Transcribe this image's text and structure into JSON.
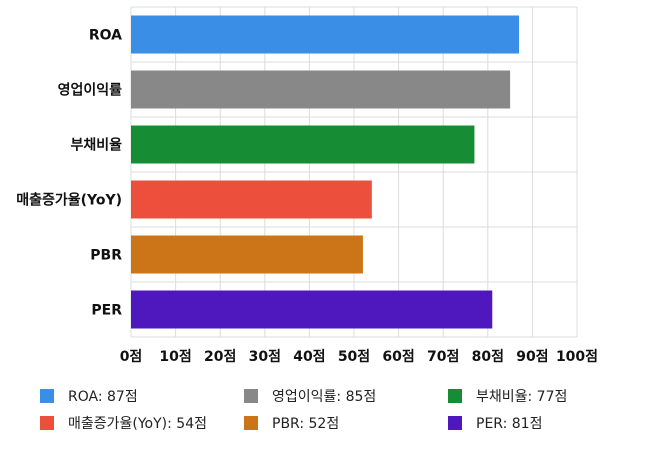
{
  "chart_data": {
    "type": "bar",
    "orientation": "horizontal",
    "categories": [
      "ROA",
      "영업이익률",
      "부채비율",
      "매출증가율(YoY)",
      "PBR",
      "PER"
    ],
    "values": [
      87,
      85,
      77,
      54,
      52,
      81
    ],
    "colors": [
      "#3a8ee6",
      "#888888",
      "#168c35",
      "#ec4f3c",
      "#cc7518",
      "#4e18be"
    ],
    "xlim": [
      0,
      100
    ],
    "xticks": [
      0,
      10,
      20,
      30,
      40,
      50,
      60,
      70,
      80,
      90,
      100
    ],
    "tick_suffix": "점",
    "grid": true,
    "legend_position": "bottom",
    "legend": [
      {
        "label": "ROA: 87점"
      },
      {
        "label": "영업이익률: 85점"
      },
      {
        "label": "부채비율: 77점"
      },
      {
        "label": "매출증가율(YoY): 54점"
      },
      {
        "label": "PBR: 52점"
      },
      {
        "label": "PER: 81점"
      }
    ]
  }
}
